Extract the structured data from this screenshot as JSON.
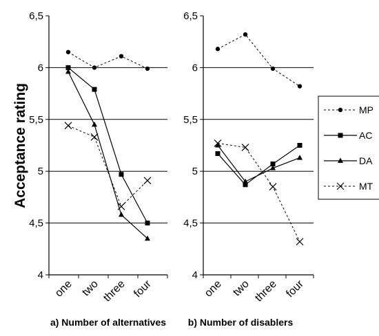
{
  "ylabel": "Acceptance rating",
  "legend": [
    {
      "name": "MP",
      "dash": "3,3",
      "marker": "circle"
    },
    {
      "name": "AC",
      "dash": "",
      "marker": "square"
    },
    {
      "name": "DA",
      "dash": "",
      "marker": "triangle"
    },
    {
      "name": "MT",
      "dash": "3,3",
      "marker": "x"
    }
  ],
  "chart_data": [
    {
      "type": "line",
      "xlabel": "a) Number of alternatives",
      "ylabel": "Acceptance rating",
      "categories": [
        "one",
        "two",
        "three",
        "four"
      ],
      "ylim": [
        4,
        6.5
      ],
      "yticks": [
        "4",
        "4,5",
        "5",
        "5,5",
        "6",
        "6,5"
      ],
      "grid": true,
      "series": [
        {
          "name": "MP",
          "values": [
            6.15,
            6.0,
            6.11,
            5.99
          ]
        },
        {
          "name": "AC",
          "values": [
            6.0,
            5.79,
            4.97,
            4.5
          ]
        },
        {
          "name": "DA",
          "values": [
            5.96,
            5.45,
            4.58,
            4.35
          ]
        },
        {
          "name": "MT",
          "values": [
            5.44,
            5.33,
            4.66,
            4.91
          ]
        }
      ]
    },
    {
      "type": "line",
      "xlabel": "b) Number of disablers",
      "ylabel": "",
      "categories": [
        "one",
        "two",
        "three",
        "four"
      ],
      "ylim": [
        4,
        6.5
      ],
      "yticks": [
        "4",
        "4,5",
        "5",
        "5,5",
        "6",
        "6,5"
      ],
      "grid": true,
      "series": [
        {
          "name": "MP",
          "values": [
            6.18,
            6.32,
            5.99,
            5.82
          ]
        },
        {
          "name": "AC",
          "values": [
            5.17,
            4.87,
            5.07,
            5.25
          ]
        },
        {
          "name": "DA",
          "values": [
            5.25,
            4.9,
            5.03,
            5.13
          ]
        },
        {
          "name": "MT",
          "values": [
            5.27,
            5.23,
            4.85,
            4.32
          ]
        }
      ]
    }
  ]
}
